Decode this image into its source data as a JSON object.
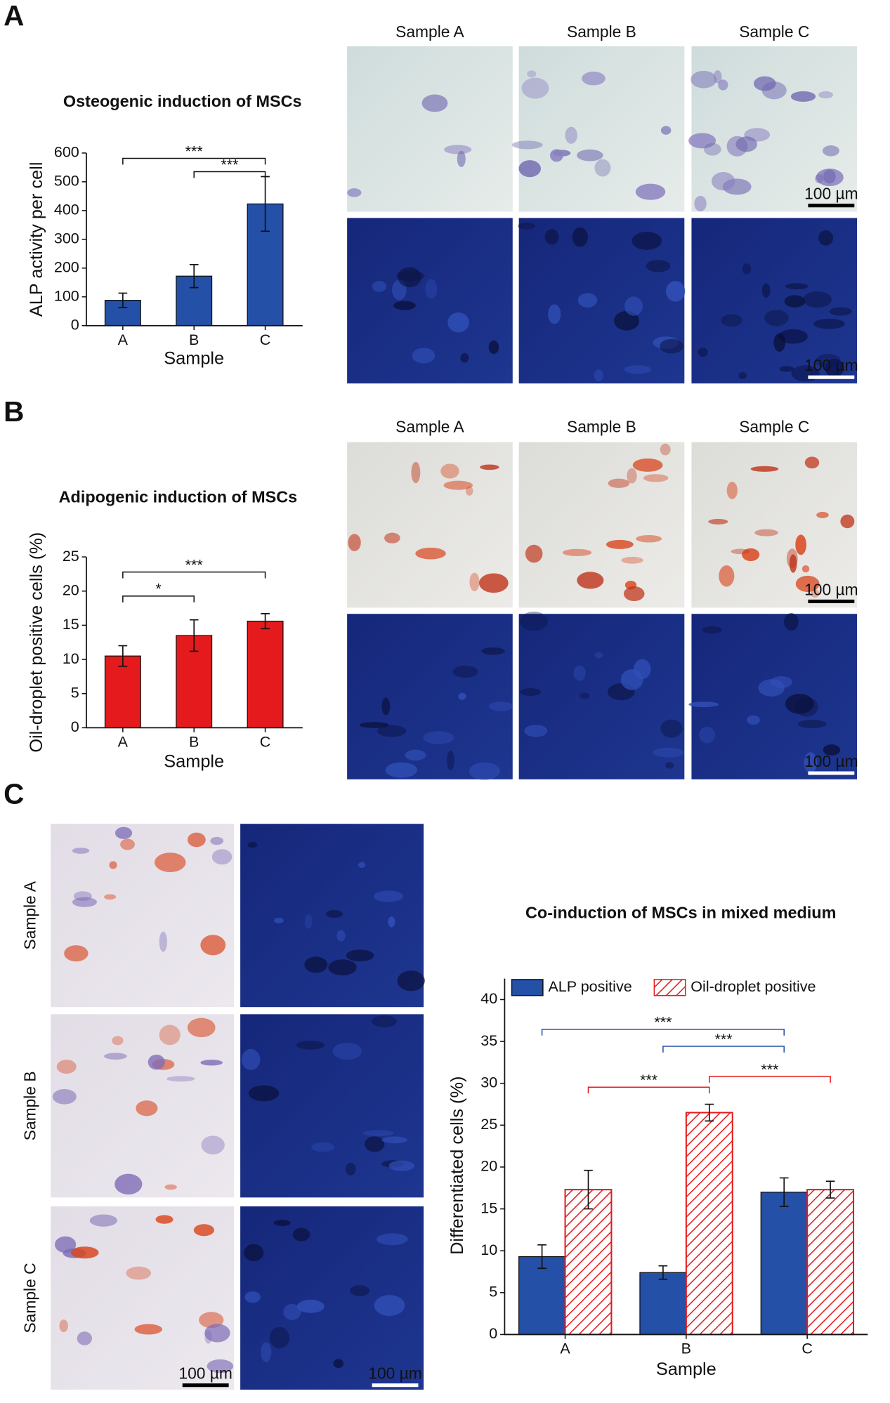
{
  "figure": {
    "panels": [
      {
        "label": "A",
        "columns": [
          "Sample A",
          "Sample B",
          "Sample C"
        ]
      },
      {
        "label": "B",
        "columns": [
          "Sample A",
          "Sample B",
          "Sample C"
        ]
      },
      {
        "label": "C",
        "rows": [
          "Sample A",
          "Sample B",
          "Sample C"
        ]
      }
    ],
    "scale_bar": "100 µm"
  },
  "chart_data": [
    {
      "type": "bar",
      "title": "Osteogenic induction of MSCs",
      "x_label": "Sample",
      "y_label": "ALP activity per cell",
      "categories": [
        "A",
        "B",
        "C"
      ],
      "values": [
        88,
        172,
        423
      ],
      "errors": [
        25,
        40,
        95
      ],
      "color": "#2450a8",
      "ylim": [
        0,
        600
      ],
      "yticks": [
        0,
        100,
        200,
        300,
        400,
        500,
        600
      ],
      "annotations": [
        {
          "text": "***",
          "from": "A",
          "to": "C"
        },
        {
          "text": "***",
          "from": "B",
          "to": "C"
        }
      ]
    },
    {
      "type": "bar",
      "title": "Adipogenic induction of MSCs",
      "x_label": "Sample",
      "y_label": "Oil-droplet positive cells (%)",
      "categories": [
        "A",
        "B",
        "C"
      ],
      "values": [
        10.5,
        13.5,
        15.6
      ],
      "errors": [
        1.5,
        2.3,
        1.1
      ],
      "color": "#e41a1c",
      "ylim": [
        0,
        25
      ],
      "yticks": [
        0,
        5,
        10,
        15,
        20,
        25
      ],
      "annotations": [
        {
          "text": "*",
          "from": "A",
          "to": "B"
        },
        {
          "text": "***",
          "from": "A",
          "to": "C"
        }
      ]
    },
    {
      "type": "bar",
      "title": "Co-induction of MSCs in mixed medium",
      "x_label": "Sample",
      "y_label": "Differentiated cells (%)",
      "categories": [
        "A",
        "B",
        "C"
      ],
      "series": [
        {
          "name": "ALP positive",
          "color": "#2450a8",
          "values": [
            9.3,
            7.4,
            17.0
          ],
          "errors": [
            1.4,
            0.8,
            1.7
          ]
        },
        {
          "name": "Oil-droplet positive",
          "color": "#e41a1c",
          "pattern": "hatch",
          "values": [
            17.3,
            26.5,
            17.3
          ],
          "errors": [
            2.3,
            1.0,
            1.0
          ]
        }
      ],
      "ylim": [
        0,
        42.5
      ],
      "yticks": [
        0,
        5,
        10,
        15,
        20,
        25,
        30,
        35,
        40
      ],
      "legend": "top-left",
      "annotations": [
        {
          "text": "***",
          "from": "A",
          "to": "C",
          "color": "#2450a8"
        },
        {
          "text": "***",
          "from": "B",
          "to": "C",
          "color": "#2450a8"
        },
        {
          "text": "***",
          "from": "A",
          "to": "B",
          "color": "#e41a1c"
        },
        {
          "text": "***",
          "from": "B",
          "to": "C",
          "color": "#e41a1c"
        }
      ]
    }
  ]
}
